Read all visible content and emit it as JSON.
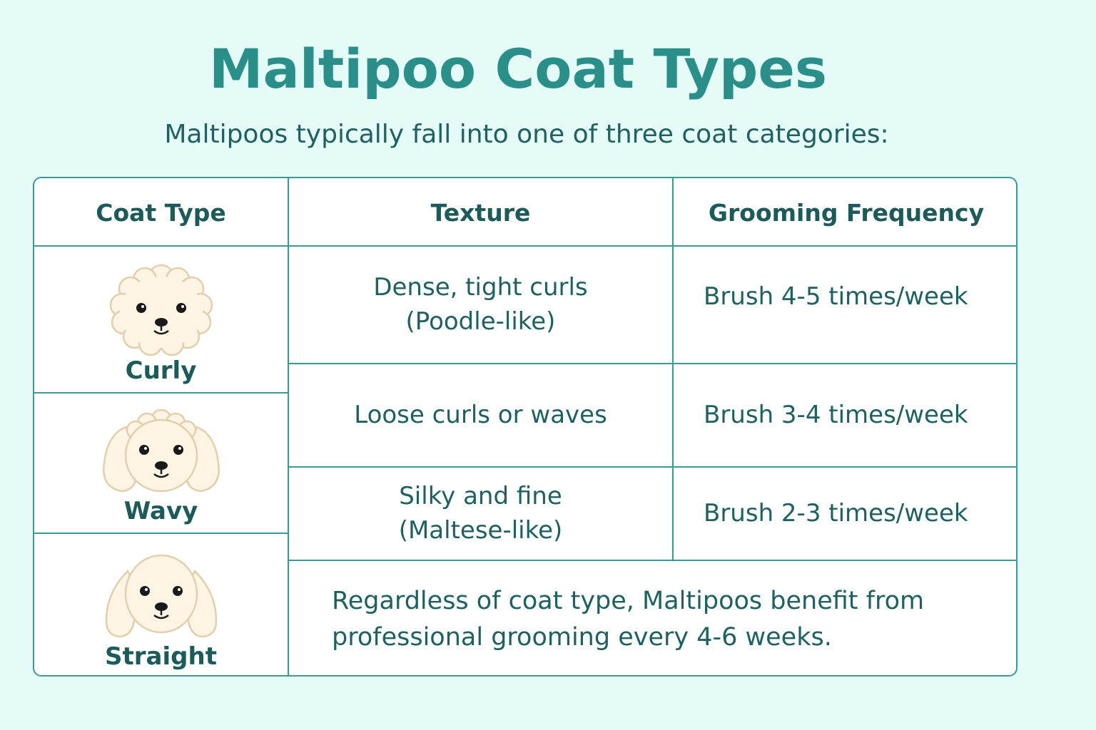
{
  "title": "Maltipoo Coat Types",
  "subtitle": "Maltipoos typically fall into one of three coat categories:",
  "table": {
    "headers": [
      "Coat Type",
      "Texture",
      "Grooming Frequency"
    ],
    "rows": [
      {
        "coat": "Curly",
        "icon": "curly-dog-icon",
        "texture": "Dense, tight curls\n(Poodle-like)",
        "frequency": "Brush 4-5 times/week"
      },
      {
        "coat": "Wavy",
        "icon": "wavy-dog-icon",
        "texture": "Loose curls or waves",
        "frequency": "Brush 3-4 times/week"
      },
      {
        "coat": "Straight",
        "icon": "straight-dog-icon",
        "texture": "Silky and fine\n(Maltese-like)",
        "frequency": "Brush 2-3 times/week"
      }
    ],
    "note": "Regardless of coat type, Maltipoos benefit from professional grooming every 4-6 weeks."
  },
  "colors": {
    "background": "#e4fbf8",
    "title": "#2a8f88",
    "border": "#3a9a93",
    "text": "#1d5a5a",
    "dog_fur": "#fdf4e4",
    "dog_outline": "#e3ceae"
  }
}
